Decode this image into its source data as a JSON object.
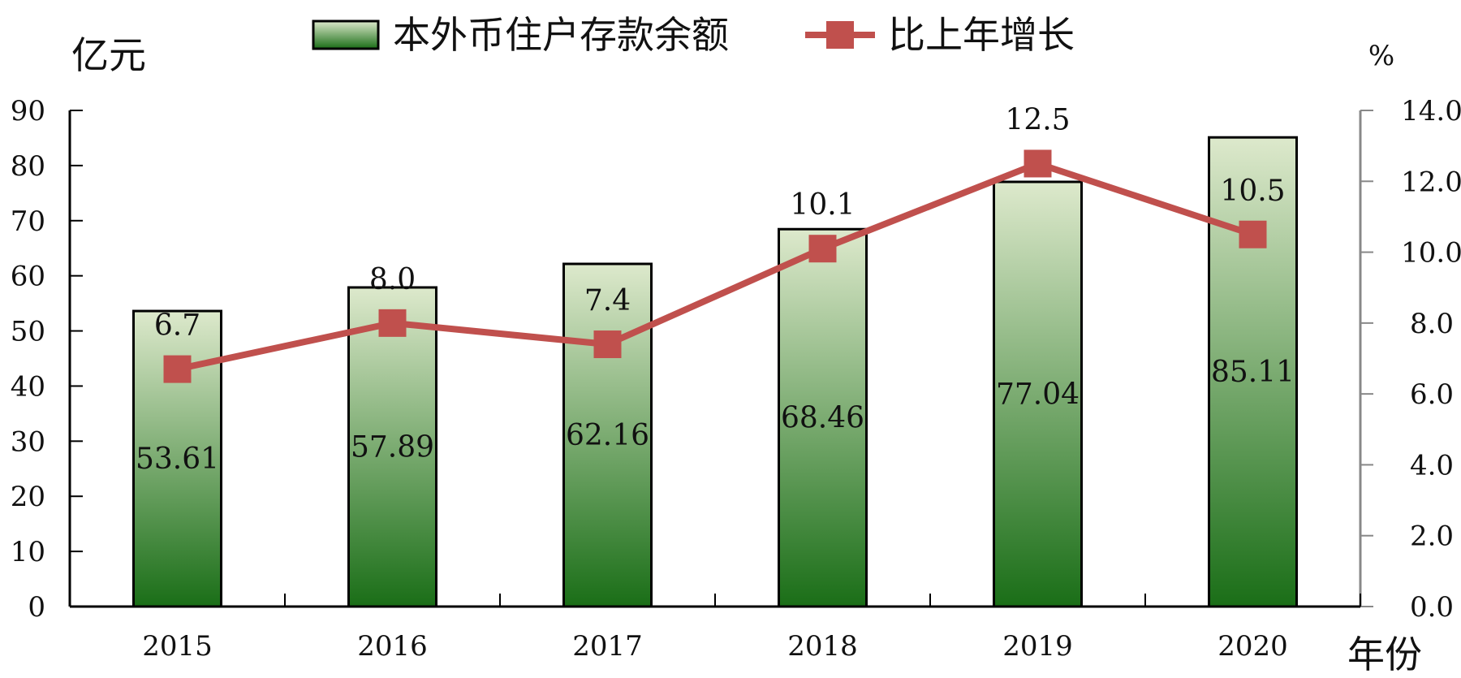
{
  "chart_data": {
    "type": "bar+line",
    "categories": [
      "2015",
      "2016",
      "2017",
      "2018",
      "2019",
      "2020"
    ],
    "series": [
      {
        "name": "本外币住户存款余额",
        "type": "bar",
        "axis": "left",
        "values": [
          53.61,
          57.89,
          62.16,
          68.46,
          77.04,
          85.11
        ],
        "labels": [
          "53.61",
          "57.89",
          "62.16",
          "68.46",
          "77.04",
          "85.11"
        ]
      },
      {
        "name": "比上年增长",
        "type": "line",
        "axis": "right",
        "values": [
          6.7,
          8.0,
          7.4,
          10.1,
          12.5,
          10.5
        ],
        "labels": [
          "6.7",
          "8.0",
          "7.4",
          "10.1",
          "12.5",
          "10.5"
        ]
      }
    ],
    "y_left": {
      "unit": "亿元",
      "ylim": [
        0,
        90
      ],
      "ticks": [
        "0",
        "10",
        "20",
        "30",
        "40",
        "50",
        "60",
        "70",
        "80",
        "90"
      ]
    },
    "y_right": {
      "unit": "%",
      "ylim": [
        0,
        14
      ],
      "ticks": [
        "0.0",
        "2.0",
        "4.0",
        "6.0",
        "8.0",
        "10.0",
        "12.0",
        "14.0"
      ]
    },
    "x_unit": "年份",
    "legend_position": "top",
    "grid": false,
    "colors": {
      "bar_top": "#dde9cc",
      "bar_bottom": "#1a6e17",
      "bar_border": "#000000",
      "line": "#c0504d",
      "right_axis": "#888888"
    }
  }
}
